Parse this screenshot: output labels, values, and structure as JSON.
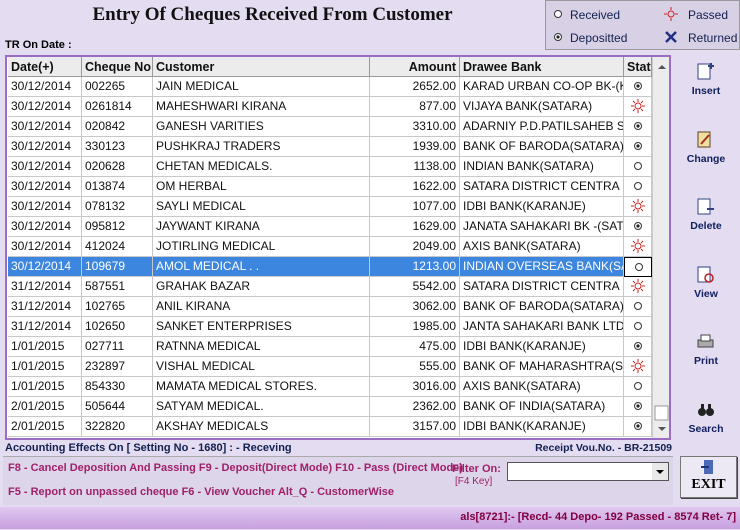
{
  "header": {
    "title": "Entry Of Cheques Received From Customer",
    "tr_on_date": "TR On Date :"
  },
  "legend": [
    "Received",
    "Passed",
    "Depositted",
    "Returned"
  ],
  "table": {
    "columns": [
      "Date(+)",
      "Cheque No",
      "Customer",
      "Amount",
      "Drawee Bank",
      "Statu"
    ],
    "rows": [
      [
        "30/12/2014",
        "002265",
        "JAIN MEDICAL",
        "2652.00",
        "KARAD URBAN CO-OP BK-(K"
      ],
      [
        "30/12/2014",
        "0261814",
        "MAHESHWARI KIRANA",
        "877.00",
        "VIJAYA BANK(SATARA)"
      ],
      [
        "30/12/2014",
        "020842",
        "GANESH VARITIES",
        "3310.00",
        "ADARNIY P.D.PATILSAHEB S"
      ],
      [
        "30/12/2014",
        "330123",
        "PUSHKRAJ TRADERS",
        "1939.00",
        "BANK OF BARODA(SATARA)"
      ],
      [
        "30/12/2014",
        "020628",
        "CHETAN MEDICALS.",
        "1138.00",
        "INDIAN BANK(SATARA)"
      ],
      [
        "30/12/2014",
        "013874",
        "OM HERBAL",
        "1622.00",
        "SATARA DISTRICT CENTRA"
      ],
      [
        "30/12/2014",
        "078132",
        "SAYLI MEDICAL",
        "1077.00",
        "IDBI BANK(KARANJE)"
      ],
      [
        "30/12/2014",
        "095812",
        "JAYWANT KIRANA",
        "1629.00",
        "JANATA SAHAKARI BK -(SAT"
      ],
      [
        "30/12/2014",
        "412024",
        "JOTIRLING MEDICAL",
        "2049.00",
        "AXIS BANK(SATARA)"
      ],
      [
        "30/12/2014",
        "109679",
        "AMOL MEDICAL . .",
        "1213.00",
        "INDIAN OVERSEAS BANK(SA"
      ],
      [
        "31/12/2014",
        "587551",
        "GRAHAK BAZAR",
        "5542.00",
        "SATARA DISTRICT CENTRA"
      ],
      [
        "31/12/2014",
        "102765",
        "ANIL KIRANA",
        "3062.00",
        "BANK OF BARODA(SATARA)"
      ],
      [
        "31/12/2014",
        "102650",
        "SANKET ENTERPRISES",
        "1985.00",
        "JANTA SAHAKARI BANK LTD"
      ],
      [
        "1/01/2015",
        "027711",
        "RATNNA MEDICAL",
        "475.00",
        "IDBI BANK(KARANJE)"
      ],
      [
        "1/01/2015",
        "232897",
        "VISHAL MEDICAL",
        "555.00",
        "BANK OF MAHARASHTRA(SA"
      ],
      [
        "1/01/2015",
        "854330",
        "MAMATA MEDICAL STORES.",
        "3016.00",
        "AXIS BANK(SATARA)"
      ],
      [
        "2/01/2015",
        "505644",
        "SATYAM MEDICAL.",
        "2362.00",
        "BANK OF INDIA(SATARA)"
      ],
      [
        "2/01/2015",
        "322820",
        "AKSHAY MEDICALS",
        "3157.00",
        "IDBI BANK(KARANJE)"
      ]
    ]
  },
  "buttons": [
    "Insert",
    "Change",
    "Delete",
    "View",
    "Print",
    "Search"
  ],
  "exit": "EXIT",
  "footer": {
    "accounting": "Accounting Effects On  [ Setting No - 1680] : -   Receving",
    "voucher": "Receipt Vou.No. - BR-21509"
  },
  "keys": [
    "F8 - Cancel Deposition And Passing F9 - Deposit(Direct Mode)   F10 - Pass (Direct Mode)",
    "F5 - Report on unpassed cheque      F6 - View Voucher     Alt_Q - CustomerWise"
  ],
  "filter": {
    "label": "Filter On:",
    "hint": "[F4 Key]"
  },
  "status_bar": "als[8721]:- [Recd- 44  Depo- 192  Passed - 8574  Ret- 7]"
}
